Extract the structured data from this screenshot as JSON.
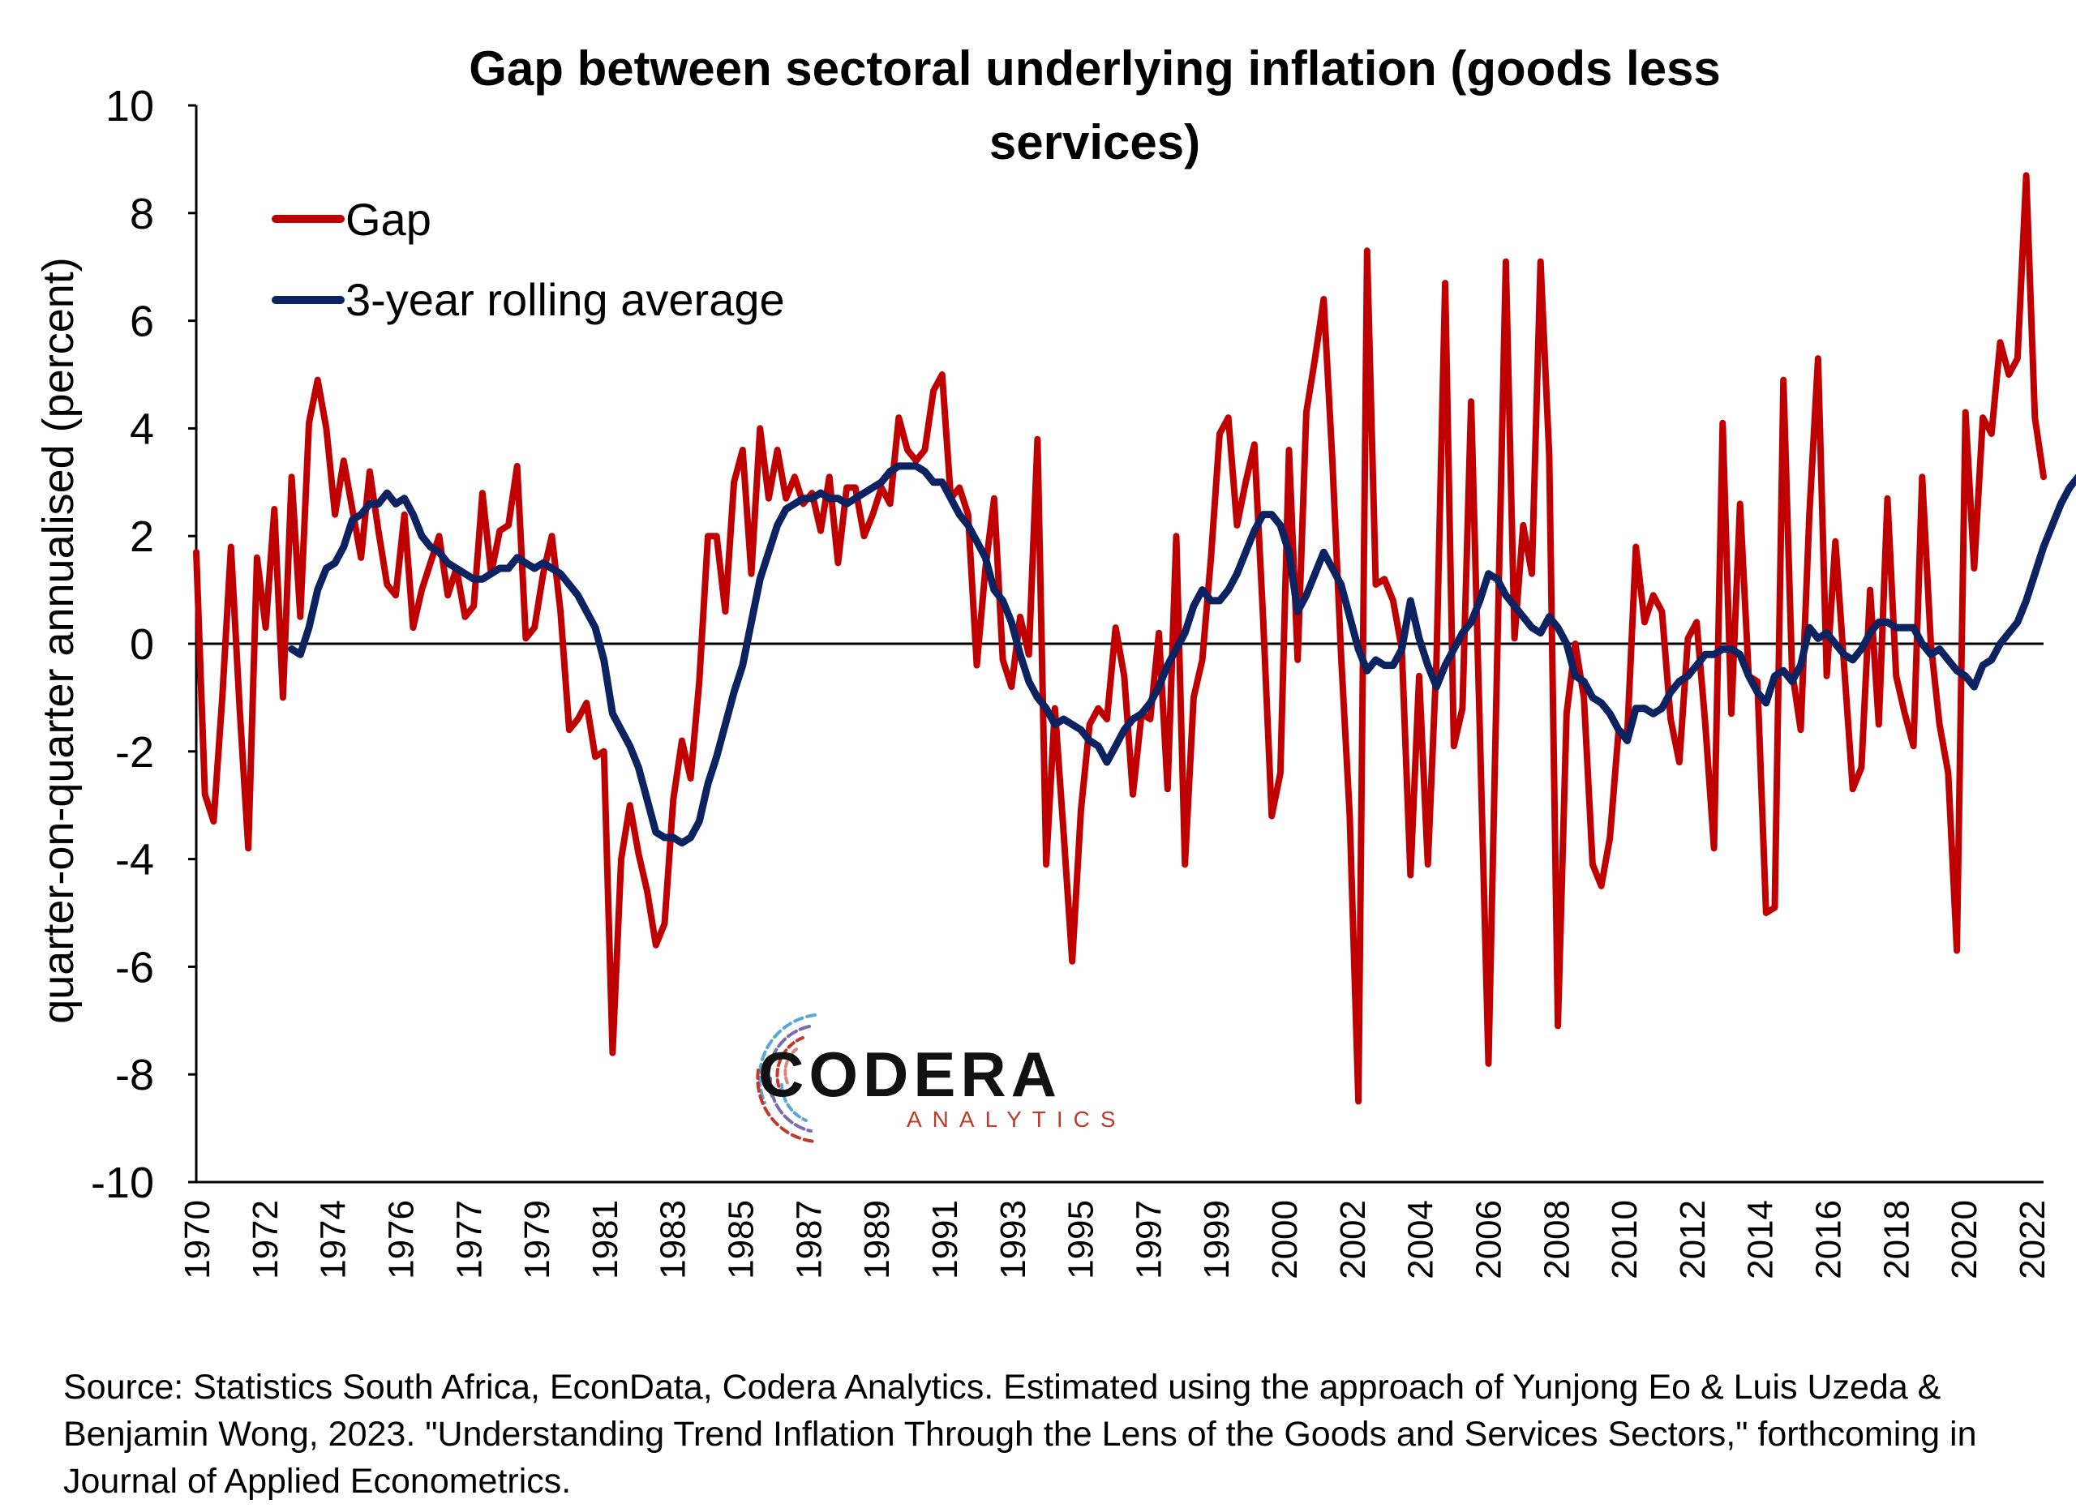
{
  "source_note": "Source: Statistics South Africa, EconData, Codera Analytics. Estimated using the approach of Yunjong Eo & Luis Uzeda & Benjamin Wong, 2023. \"Understanding Trend Inflation Through the Lens of the Goods and Services Sectors,\" forthcoming in Journal of Applied Econometrics.",
  "logo": {
    "main": "CODERA",
    "sub": "ANALYTICS"
  },
  "chart_data": {
    "type": "line",
    "title": "Gap between sectoral underlying inflation (goods less services)",
    "title_lines": [
      "Gap between sectoral underlying inflation (goods less",
      "services)"
    ],
    "ylabel": "quarter-on-quarter annualised (percent)",
    "xlabel": "",
    "ylim": [
      -10,
      10
    ],
    "yticks": [
      -10,
      -8,
      -6,
      -4,
      -2,
      0,
      2,
      4,
      6,
      8,
      10
    ],
    "x_tick_labels": [
      "1970",
      "1972",
      "1974",
      "1976",
      "1977",
      "1979",
      "1981",
      "1983",
      "1985",
      "1987",
      "1989",
      "1991",
      "1993",
      "1995",
      "1997",
      "1999",
      "2000",
      "2002",
      "2004",
      "2006",
      "2008",
      "2010",
      "2012",
      "2014",
      "2016",
      "2018",
      "2020",
      "2022"
    ],
    "x_range": [
      1970.0,
      2023.25
    ],
    "legend_position": "top-left",
    "grid": false,
    "zero_line": true,
    "colors": {
      "gap": "#c00000",
      "rolling": "#0d2260"
    },
    "series": [
      {
        "name": "Gap",
        "x_start": 1970.0,
        "step": 0.25,
        "values": [
          1.7,
          -2.8,
          -3.3,
          -1.0,
          1.8,
          -1.2,
          -3.8,
          1.6,
          0.3,
          2.5,
          -1.0,
          3.1,
          0.5,
          4.1,
          4.9,
          4.0,
          2.4,
          3.4,
          2.5,
          1.6,
          3.2,
          2.1,
          1.1,
          0.9,
          2.4,
          0.3,
          1.0,
          1.5,
          2.0,
          0.9,
          1.4,
          0.5,
          0.7,
          2.8,
          1.3,
          2.1,
          2.2,
          3.3,
          0.1,
          0.3,
          1.3,
          2.0,
          0.6,
          -1.6,
          -1.4,
          -1.1,
          -2.1,
          -2.0,
          -7.6,
          -4.0,
          -3.0,
          -3.9,
          -4.6,
          -5.6,
          -5.2,
          -2.9,
          -1.8,
          -2.5,
          -0.7,
          2.0,
          2.0,
          0.6,
          3.0,
          3.6,
          1.3,
          4.0,
          2.7,
          3.6,
          2.7,
          3.1,
          2.6,
          2.8,
          2.1,
          3.1,
          1.5,
          2.9,
          2.9,
          2.0,
          2.4,
          2.9,
          2.6,
          4.2,
          3.6,
          3.4,
          3.6,
          4.7,
          5.0,
          2.7,
          2.9,
          2.4,
          -0.4,
          1.4,
          2.7,
          -0.3,
          -0.8,
          0.5,
          -0.2,
          3.8,
          -4.1,
          -1.2,
          -3.5,
          -5.9,
          -3.1,
          -1.5,
          -1.2,
          -1.4,
          0.3,
          -0.6,
          -2.8,
          -1.3,
          -1.4,
          0.2,
          -2.7,
          2.0,
          -4.1,
          -1.0,
          -0.3,
          1.6,
          3.9,
          4.2,
          2.2,
          3.0,
          3.7,
          0.5,
          -3.2,
          -2.4,
          3.6,
          -0.3,
          4.3,
          5.3,
          6.4,
          3.4,
          -0.2,
          -3.2,
          -8.5,
          7.3,
          1.1,
          1.2,
          0.8,
          -0.1,
          -4.3,
          -0.6,
          -4.1,
          -0.3,
          6.7,
          -1.9,
          -1.2,
          4.5,
          -1.6,
          -7.8,
          -0.3,
          7.1,
          0.1,
          2.2,
          1.3,
          7.1,
          3.5,
          -7.1,
          -1.3,
          0.0,
          -1.0,
          -4.1,
          -4.5,
          -3.6,
          -1.6,
          -1.7,
          1.8,
          0.4,
          0.9,
          0.6,
          -1.4,
          -2.2,
          0.1,
          0.4,
          -1.5,
          -3.8,
          4.1,
          -1.3,
          2.6,
          -0.6,
          -0.7,
          -5.0,
          -4.9,
          4.9,
          -0.5,
          -1.6,
          2.4,
          5.3,
          -0.6,
          1.9,
          -0.4,
          -2.7,
          -2.3,
          1.0,
          -1.5,
          2.7,
          -0.6,
          -1.3,
          -1.9,
          3.1,
          0.0,
          -1.5,
          -2.4,
          -5.7,
          4.3,
          1.4,
          4.2,
          3.9,
          5.6,
          5.0,
          5.3,
          8.7,
          4.2,
          3.1
        ]
      },
      {
        "name": "3-year rolling average",
        "x_start": 1972.75,
        "step": 0.25,
        "values": [
          -0.1,
          -0.2,
          0.3,
          1.0,
          1.4,
          1.5,
          1.8,
          2.3,
          2.4,
          2.6,
          2.6,
          2.8,
          2.6,
          2.7,
          2.4,
          2.0,
          1.8,
          1.7,
          1.5,
          1.4,
          1.3,
          1.2,
          1.2,
          1.3,
          1.4,
          1.4,
          1.6,
          1.5,
          1.4,
          1.5,
          1.4,
          1.3,
          1.1,
          0.9,
          0.6,
          0.3,
          -0.3,
          -1.3,
          -1.6,
          -1.9,
          -2.3,
          -2.9,
          -3.5,
          -3.6,
          -3.6,
          -3.7,
          -3.6,
          -3.3,
          -2.6,
          -2.1,
          -1.5,
          -0.9,
          -0.4,
          0.4,
          1.2,
          1.7,
          2.2,
          2.5,
          2.6,
          2.7,
          2.7,
          2.8,
          2.7,
          2.7,
          2.6,
          2.7,
          2.8,
          2.9,
          3.0,
          3.2,
          3.3,
          3.3,
          3.3,
          3.2,
          3.0,
          3.0,
          2.7,
          2.4,
          2.2,
          1.9,
          1.6,
          1.0,
          0.8,
          0.4,
          -0.2,
          -0.7,
          -1.0,
          -1.2,
          -1.5,
          -1.4,
          -1.5,
          -1.6,
          -1.8,
          -1.9,
          -2.2,
          -1.9,
          -1.6,
          -1.4,
          -1.3,
          -1.1,
          -0.8,
          -0.4,
          -0.1,
          0.2,
          0.7,
          1.0,
          0.8,
          0.8,
          1.0,
          1.3,
          1.7,
          2.1,
          2.4,
          2.4,
          2.2,
          1.7,
          0.6,
          0.9,
          1.3,
          1.7,
          1.4,
          1.1,
          0.5,
          -0.1,
          -0.5,
          -0.3,
          -0.4,
          -0.4,
          -0.1,
          0.8,
          0.1,
          -0.4,
          -0.8,
          -0.4,
          -0.1,
          0.2,
          0.4,
          0.8,
          1.3,
          1.2,
          0.9,
          0.7,
          0.5,
          0.3,
          0.2,
          0.5,
          0.3,
          0.0,
          -0.6,
          -0.7,
          -1.0,
          -1.1,
          -1.3,
          -1.6,
          -1.8,
          -1.2,
          -1.2,
          -1.3,
          -1.2,
          -0.9,
          -0.7,
          -0.6,
          -0.4,
          -0.2,
          -0.2,
          -0.1,
          -0.1,
          -0.2,
          -0.6,
          -0.9,
          -1.1,
          -0.6,
          -0.5,
          -0.7,
          -0.4,
          0.3,
          0.1,
          0.2,
          0.0,
          -0.2,
          -0.3,
          -0.1,
          0.2,
          0.4,
          0.4,
          0.3,
          0.3,
          0.3,
          0.0,
          -0.2,
          -0.1,
          -0.3,
          -0.5,
          -0.6,
          -0.8,
          -0.4,
          -0.3,
          0.0,
          0.2,
          0.4,
          0.8,
          1.3,
          1.8,
          2.2,
          2.6,
          2.9,
          3.1
        ]
      }
    ]
  }
}
